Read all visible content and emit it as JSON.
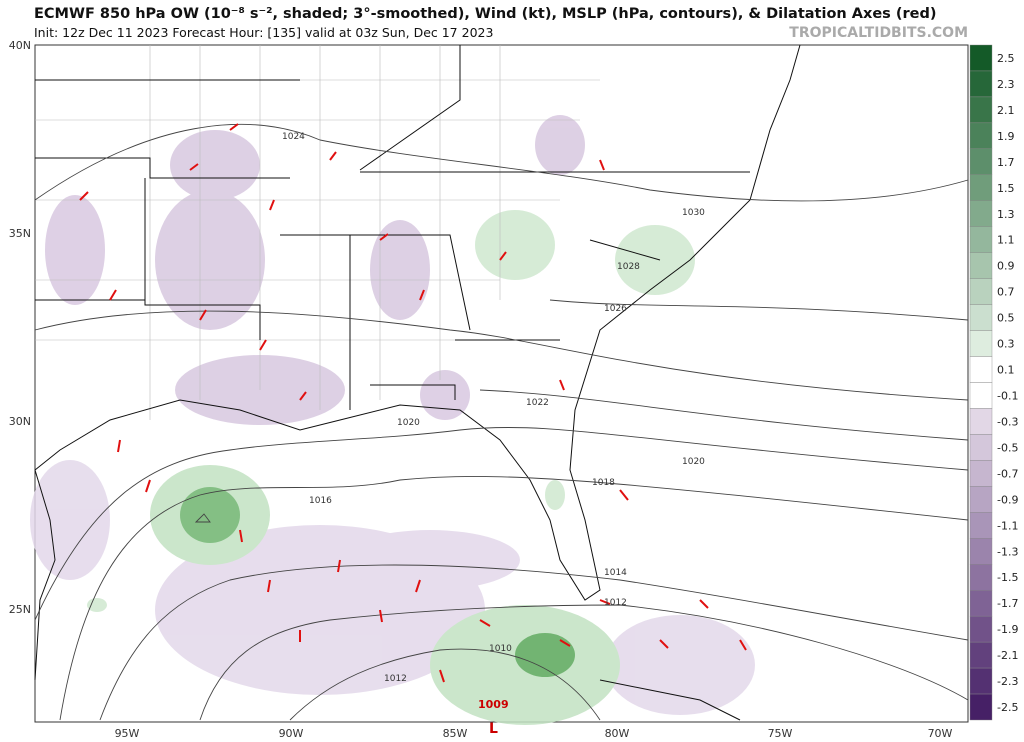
{
  "header": {
    "title": "ECMWF 850 hPa OW (10⁻⁸ s⁻², shaded; 3°-smoothed), Wind (kt), MSLP (hPa, contours), & Dilatation Axes (red)",
    "subtitle": "Init: 12z Dec 11 2023   Forecast Hour: [135]   valid at 03z Sun, Dec 17 2023",
    "brand": "TROPICALTIDBITS.COM"
  },
  "latitude_labels": [
    "40N",
    "35N",
    "30N",
    "25N"
  ],
  "longitude_labels": [
    "95W",
    "90W",
    "85W",
    "80W",
    "75W",
    "70W"
  ],
  "contour_labels": [
    "1024",
    "1030",
    "1028",
    "1026",
    "1022",
    "1020",
    "1020",
    "1018",
    "1016",
    "1014",
    "1012",
    "1010",
    "1012",
    "1009"
  ],
  "low_marker": "L",
  "colorbar_labels": [
    2.5,
    2.3,
    2.1,
    1.9,
    1.7,
    1.5,
    1.3,
    1.1,
    0.9,
    0.7,
    0.5,
    0.3,
    0.1,
    -0.1,
    -0.3,
    -0.5,
    -0.7,
    -0.9,
    -1.1,
    -1.3,
    -1.5,
    -1.7,
    -1.9,
    -2.1,
    -2.3,
    -2.5
  ]
}
